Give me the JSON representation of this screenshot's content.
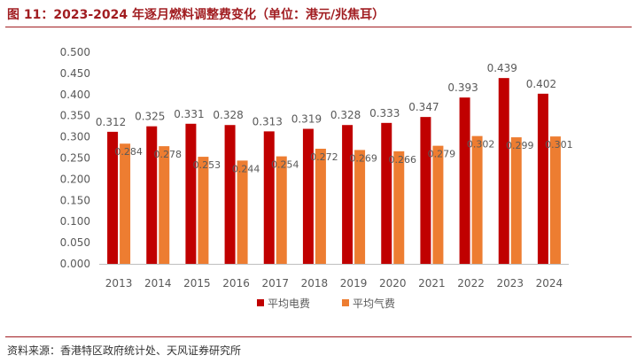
{
  "header": {
    "title": "图 11：2023-2024 年逐月燃料调整费变化（单位：港元/兆焦耳）"
  },
  "footer": {
    "source": "资料来源：香港特区政府统计处、天风证券研究所"
  },
  "colors": {
    "accent": "#a11d21",
    "electric": "#c00000",
    "gas": "#ed7d31"
  },
  "chart_data": {
    "type": "bar",
    "categories": [
      "2013",
      "2014",
      "2015",
      "2016",
      "2017",
      "2018",
      "2019",
      "2020",
      "2021",
      "2022",
      "2023",
      "2024"
    ],
    "series": [
      {
        "name": "平均电费",
        "values": [
          0.312,
          0.325,
          0.331,
          0.328,
          0.313,
          0.319,
          0.328,
          0.333,
          0.347,
          0.393,
          0.439,
          0.402
        ],
        "labels": [
          "0.312",
          "0.325",
          "0.331",
          "0.328",
          "0.313",
          "0.319",
          "0.328",
          "0.333",
          "0.347",
          "0.393",
          "0.439",
          "0.402"
        ]
      },
      {
        "name": "平均气费",
        "values": [
          0.284,
          0.278,
          0.253,
          0.244,
          0.254,
          0.272,
          0.269,
          0.266,
          0.279,
          0.302,
          0.299,
          0.301
        ],
        "labels": [
          "0.284",
          "0.278",
          "0.253",
          "0.244",
          "0.254",
          "0.272",
          "0.269",
          "0.266",
          "0.279",
          "0.302",
          "0.299",
          "0.301"
        ]
      }
    ],
    "ylim": [
      0,
      0.5
    ],
    "yticks": [
      "0.000",
      "0.050",
      "0.100",
      "0.150",
      "0.200",
      "0.250",
      "0.300",
      "0.350",
      "0.400",
      "0.450",
      "0.500"
    ],
    "legend_position": "bottom",
    "grid": false
  }
}
